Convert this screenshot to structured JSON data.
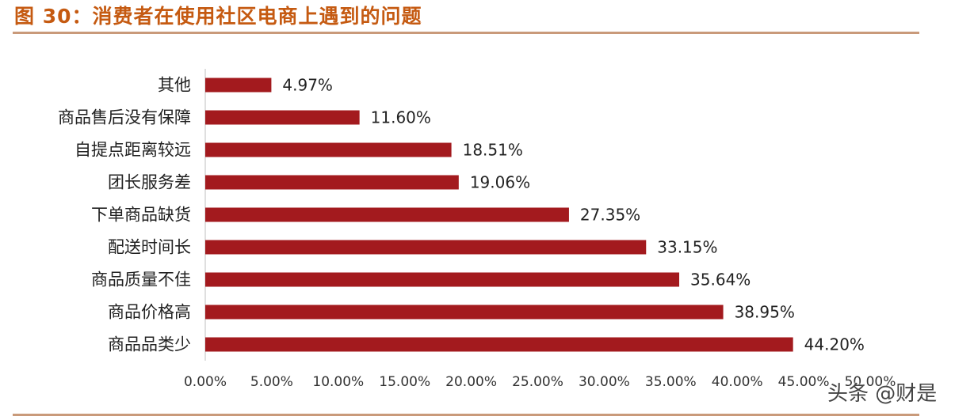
{
  "header": {
    "title": "图 30：消费者在使用社区电商上遇到的问题",
    "title_color": "#c55a11",
    "rule_color": "#c99a7a"
  },
  "watermark": "头条 @财是",
  "chart_data": {
    "type": "bar",
    "orientation": "horizontal",
    "title": "",
    "xlabel": "",
    "ylabel": "",
    "categories": [
      "其他",
      "商品售后没有保障",
      "自提点距离较远",
      "团长服务差",
      "下单商品缺货",
      "配送时间长",
      "商品质量不佳",
      "商品价格高",
      "商品品类少"
    ],
    "values": [
      4.97,
      11.6,
      18.51,
      19.06,
      27.35,
      33.15,
      35.64,
      38.95,
      44.2
    ],
    "value_labels": [
      "4.97%",
      "11.60%",
      "18.51%",
      "19.06%",
      "27.35%",
      "33.15%",
      "35.64%",
      "38.95%",
      "44.20%"
    ],
    "xlim": [
      0,
      50
    ],
    "ticks": [
      0,
      5,
      10,
      15,
      20,
      25,
      30,
      35,
      40,
      45,
      50
    ],
    "tick_labels": [
      "0.00%",
      "5.00%",
      "10.00%",
      "15.00%",
      "20.00%",
      "25.00%",
      "30.00%",
      "35.00%",
      "40.00%",
      "45.00%",
      "50.00%"
    ],
    "bar_color": "#a31a1e",
    "grid": false,
    "legend": "none"
  }
}
